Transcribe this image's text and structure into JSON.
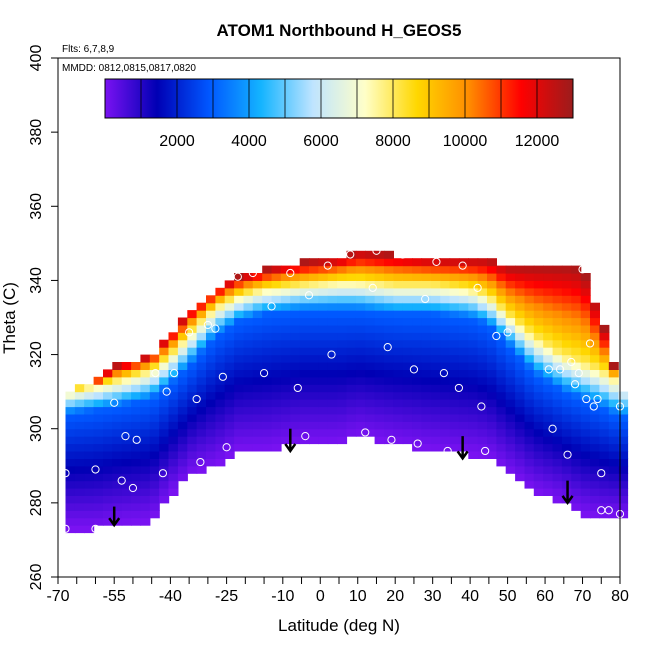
{
  "chart_data": {
    "type": "heatmap",
    "title": "ATOM1 Northbound H_GEOS5",
    "annotations": {
      "flights": "Flts: 6,7,8,9",
      "dates": "MMDD: 0812,0815,0817,0820"
    },
    "xlabel": "Latitude (deg N)",
    "ylabel": "Theta (C)",
    "xlim": [
      -70,
      80
    ],
    "ylim": [
      260,
      400
    ],
    "x_ticks": [
      -70,
      -55,
      -40,
      -25,
      -10,
      0,
      10,
      20,
      30,
      40,
      50,
      60,
      70,
      80
    ],
    "x_tick_labels": [
      "-70",
      "-55",
      "-40",
      "-25",
      "-10",
      "0",
      "10",
      "20",
      "30",
      "40",
      "50",
      "60",
      "70",
      "80"
    ],
    "x_minor_ticks": [
      -65,
      -60,
      -50,
      -45,
      -35,
      -30,
      -20,
      -15,
      -5,
      5,
      15,
      25,
      35,
      45,
      55,
      65,
      75
    ],
    "y_ticks": [
      260,
      280,
      300,
      320,
      340,
      360,
      380,
      400
    ],
    "y_tick_labels": [
      "260",
      "280",
      "300",
      "320",
      "340",
      "360",
      "380",
      "400"
    ],
    "colorbar": {
      "range": [
        0,
        13000
      ],
      "ticks": [
        2000,
        4000,
        6000,
        8000,
        10000,
        12000
      ],
      "tick_labels": [
        "2000",
        "4000",
        "6000",
        "8000",
        "10000",
        "12000"
      ],
      "stops": [
        "#7a12f2",
        "#0000b4",
        "#0057ff",
        "#14b4ff",
        "#bfe4ff",
        "#ffffc8",
        "#ffd700",
        "#ff8c00",
        "#ff0000",
        "#9b1c1c"
      ]
    },
    "altitude_profile": [
      {
        "lat": -68,
        "bottom": 273,
        "z0": 304,
        "z1": 310,
        "top": 310
      },
      {
        "lat": -60,
        "bottom": 273,
        "z0": 305,
        "z1": 312,
        "top": 313
      },
      {
        "lat": -55,
        "bottom": 274,
        "z0": 306,
        "z1": 313,
        "top": 317
      },
      {
        "lat": -45,
        "bottom": 275,
        "z0": 308,
        "z1": 316,
        "top": 320
      },
      {
        "lat": -40,
        "bottom": 282,
        "z0": 312,
        "z1": 320,
        "top": 326
      },
      {
        "lat": -34,
        "bottom": 288,
        "z0": 318,
        "z1": 327,
        "top": 333
      },
      {
        "lat": -28,
        "bottom": 290,
        "z0": 325,
        "z1": 333,
        "top": 338
      },
      {
        "lat": -22,
        "bottom": 294,
        "z0": 329,
        "z1": 336,
        "top": 341
      },
      {
        "lat": -15,
        "bottom": 294,
        "z0": 331,
        "z1": 338,
        "top": 343
      },
      {
        "lat": -5,
        "bottom": 296,
        "z0": 332,
        "z1": 339,
        "top": 345
      },
      {
        "lat": 5,
        "bottom": 296,
        "z0": 332,
        "z1": 340,
        "top": 346
      },
      {
        "lat": 10,
        "bottom": 298,
        "z0": 332,
        "z1": 340,
        "top": 348
      },
      {
        "lat": 20,
        "bottom": 296,
        "z0": 331,
        "z1": 339,
        "top": 347
      },
      {
        "lat": 30,
        "bottom": 294,
        "z0": 331,
        "z1": 339,
        "top": 346
      },
      {
        "lat": 40,
        "bottom": 293,
        "z0": 330,
        "z1": 338,
        "top": 346
      },
      {
        "lat": 45,
        "bottom": 292,
        "z0": 328,
        "z1": 336,
        "top": 346
      },
      {
        "lat": 50,
        "bottom": 288,
        "z0": 323,
        "z1": 331,
        "top": 344
      },
      {
        "lat": 57,
        "bottom": 283,
        "z0": 315,
        "z1": 325,
        "top": 344
      },
      {
        "lat": 65,
        "bottom": 280,
        "z0": 310,
        "z1": 320,
        "top": 344
      },
      {
        "lat": 70,
        "bottom": 277,
        "z0": 308,
        "z1": 318,
        "top": 343
      },
      {
        "lat": 75,
        "bottom": 276,
        "z0": 306,
        "z1": 316,
        "top": 330
      },
      {
        "lat": 80,
        "bottom": 276,
        "z0": 303,
        "z1": 313,
        "top": 310
      }
    ],
    "observation_points": [
      [
        -68,
        288
      ],
      [
        -68,
        273
      ],
      [
        -60,
        289
      ],
      [
        -60,
        273
      ],
      [
        -55,
        307
      ],
      [
        -53,
        286
      ],
      [
        -52,
        298
      ],
      [
        -50,
        284
      ],
      [
        -49,
        297
      ],
      [
        -44,
        315
      ],
      [
        -42,
        288
      ],
      [
        -41,
        310
      ],
      [
        -39,
        315
      ],
      [
        -35,
        326
      ],
      [
        -33,
        308
      ],
      [
        -32,
        291
      ],
      [
        -30,
        328
      ],
      [
        -28,
        327
      ],
      [
        -26,
        314
      ],
      [
        -25,
        295
      ],
      [
        -22,
        341
      ],
      [
        -18,
        342
      ],
      [
        -15,
        315
      ],
      [
        -13,
        333
      ],
      [
        -8,
        342
      ],
      [
        -6,
        311
      ],
      [
        -4,
        298
      ],
      [
        -3,
        336
      ],
      [
        2,
        344
      ],
      [
        3,
        320
      ],
      [
        8,
        347
      ],
      [
        12,
        299
      ],
      [
        14,
        338
      ],
      [
        15,
        348
      ],
      [
        18,
        322
      ],
      [
        19,
        297
      ],
      [
        22,
        347
      ],
      [
        25,
        316
      ],
      [
        26,
        296
      ],
      [
        28,
        335
      ],
      [
        31,
        345
      ],
      [
        33,
        315
      ],
      [
        34,
        294
      ],
      [
        37,
        311
      ],
      [
        38,
        344
      ],
      [
        42,
        338
      ],
      [
        43,
        306
      ],
      [
        44,
        294
      ],
      [
        47,
        325
      ],
      [
        50,
        326
      ],
      [
        61,
        316
      ],
      [
        62,
        300
      ],
      [
        64,
        316
      ],
      [
        66,
        293
      ],
      [
        67,
        318
      ],
      [
        68,
        312
      ],
      [
        69,
        315
      ],
      [
        70,
        343
      ],
      [
        71,
        308
      ],
      [
        72,
        323
      ],
      [
        73,
        306
      ],
      [
        74,
        308
      ],
      [
        75,
        288
      ],
      [
        75,
        278
      ],
      [
        77,
        278
      ],
      [
        80,
        306
      ],
      [
        80,
        277
      ]
    ],
    "trajectory_arrows": [
      [
        -55,
        279,
        274
      ],
      [
        -8,
        300,
        294
      ],
      [
        38,
        298,
        292
      ],
      [
        66,
        286,
        280
      ]
    ]
  }
}
